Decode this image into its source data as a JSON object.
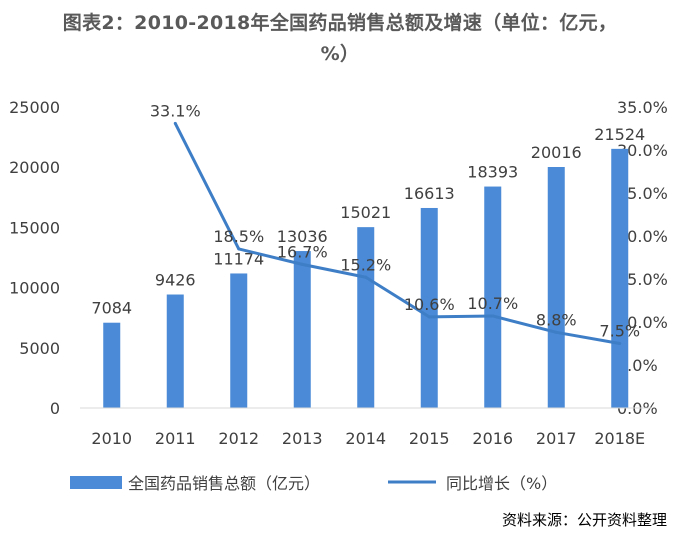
{
  "chart_data": {
    "type": "bar+line",
    "title": "图表2：2010-2018年全国药品销售总额及增速（单位：亿元，%）",
    "categories": [
      "2010",
      "2011",
      "2012",
      "2013",
      "2014",
      "2015",
      "2016",
      "2017",
      "2018E"
    ],
    "series": [
      {
        "name": "全国药品销售总额（亿元）",
        "type": "bar",
        "axis": "left",
        "values": [
          7084,
          9426,
          11174,
          13036,
          15021,
          16613,
          18393,
          20016,
          21524
        ],
        "labels": [
          "7084",
          "9426",
          "11174",
          "13036",
          "15021",
          "16613",
          "18393",
          "20016",
          "21524"
        ]
      },
      {
        "name": "同比增长（%）",
        "type": "line",
        "axis": "right",
        "values": [
          null,
          33.1,
          18.5,
          16.7,
          15.2,
          10.6,
          10.7,
          8.8,
          7.5
        ],
        "labels": [
          "",
          "33.1%",
          "18.5%",
          "16.7%",
          "15.2%",
          "10.6%",
          "10.7%",
          "8.8%",
          "7.5%"
        ]
      }
    ],
    "left_axis": {
      "min": 0,
      "max": 25000,
      "ticks": [
        "0",
        "5000",
        "10000",
        "15000",
        "20000",
        "25000"
      ]
    },
    "right_axis": {
      "min": 0,
      "max": 35,
      "ticks": [
        "0.0%",
        "5.0%",
        "10.0%",
        "15.0%",
        "20.0%",
        "25.0%",
        "30.0%",
        "35.0%"
      ]
    },
    "legend_position": "bottom",
    "grid": false,
    "colors": {
      "bar": "#4A8AD6",
      "line": "#3E7EC7"
    }
  },
  "source": "资料来源：公开资料整理"
}
